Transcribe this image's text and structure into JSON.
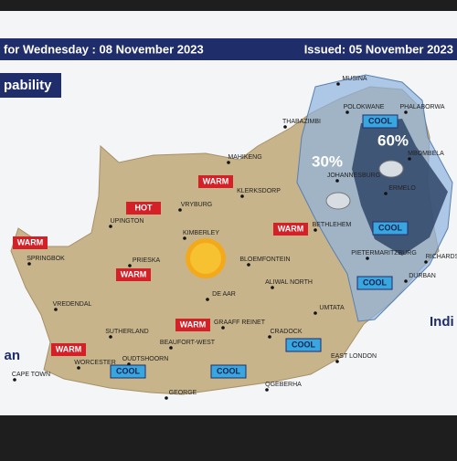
{
  "header": {
    "title": "for Wednesday : 08 November 2023",
    "issued": "Issued: 05 November 2023"
  },
  "panel_label": "pability",
  "probabilities": [
    "30%",
    "60%"
  ],
  "ocean_labels": [
    "Indi",
    "an"
  ],
  "badges": [
    "WARM",
    "HOT",
    "WARM",
    "WARM",
    "WARM",
    "WARM",
    "WARM",
    "COOL",
    "COOL",
    "COOL",
    "COOL",
    "COOL",
    "COOL"
  ],
  "cities": [
    "MUSINA",
    "POLOKWANE",
    "PHALABORWA",
    "THABAZIMBI",
    "MBOMBELA",
    "MAHIKENG",
    "JOHANNESBURG",
    "ERMELO",
    "KLERKSDORP",
    "VRYBURG",
    "UPINGTON",
    "KIMBERLEY",
    "BETHLEHEM",
    "RICHARDS",
    "SPRINGBOK",
    "PRIESKA",
    "BLOEMFONTEIN",
    "PIETERMARITZBURG",
    "DURBAN",
    "DE AAR",
    "ALIWAL NORTH",
    "VREDENDAL",
    "UMTATA",
    "SUTHERLAND",
    "GRAAFF REINET",
    "CRADOCK",
    "BEAUFORT-WEST",
    "WORCESTER",
    "OUDTSHOORN",
    "EAST LONDON",
    "CAPE TOWN",
    "GEORGE",
    "QGEBERHA"
  ]
}
